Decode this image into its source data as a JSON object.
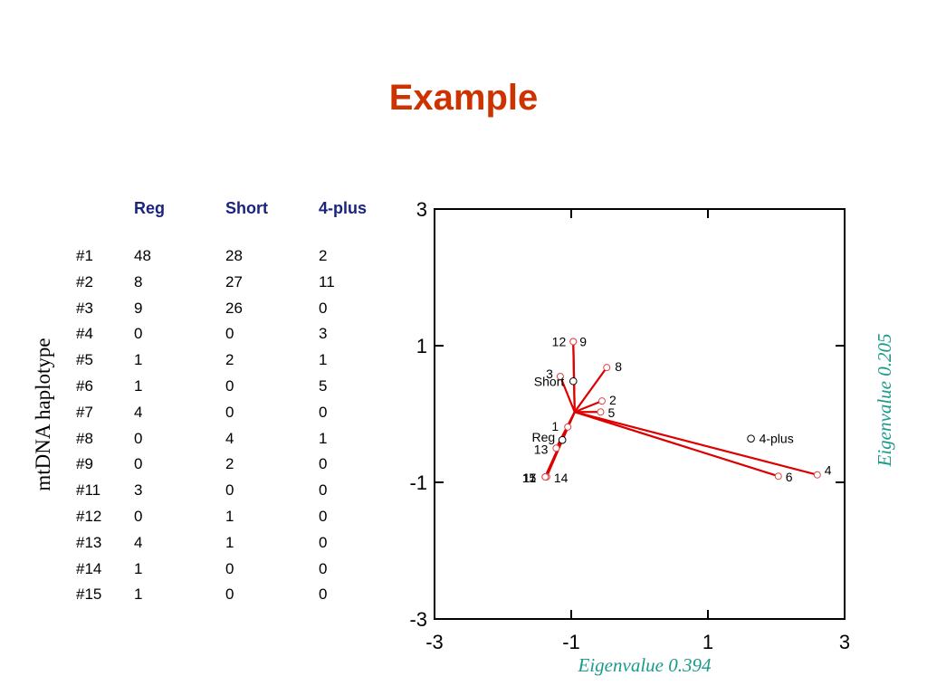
{
  "title": "Example",
  "table": {
    "columns": [
      "Reg",
      "Short",
      "4-plus"
    ],
    "row_axis_label": "mtDNA haplotype",
    "rows": [
      {
        "id": "#1",
        "values": [
          "48",
          "28",
          "2"
        ]
      },
      {
        "id": "#2",
        "values": [
          "8",
          "27",
          "11"
        ]
      },
      {
        "id": "#3",
        "values": [
          "9",
          "26",
          "0"
        ]
      },
      {
        "id": "#4",
        "values": [
          "0",
          "0",
          "3"
        ]
      },
      {
        "id": "#5",
        "values": [
          "1",
          "2",
          "1"
        ]
      },
      {
        "id": "#6",
        "values": [
          "1",
          "0",
          "5"
        ]
      },
      {
        "id": "#7",
        "values": [
          "4",
          "0",
          "0"
        ]
      },
      {
        "id": "#8",
        "values": [
          "0",
          "4",
          "1"
        ]
      },
      {
        "id": "#9",
        "values": [
          "0",
          "2",
          "0"
        ]
      },
      {
        "id": "#11",
        "values": [
          "3",
          "0",
          "0"
        ]
      },
      {
        "id": "#12",
        "values": [
          "0",
          "1",
          "0"
        ]
      },
      {
        "id": "#13",
        "values": [
          "4",
          "1",
          "0"
        ]
      },
      {
        "id": "#14",
        "values": [
          "1",
          "0",
          "0"
        ]
      },
      {
        "id": "#15",
        "values": [
          "1",
          "0",
          "0"
        ]
      }
    ]
  },
  "chart_data": {
    "type": "scatter",
    "title": "",
    "xlabel": "Eigenvalue 0.394",
    "ylabel": "Eigenvalue 0.205",
    "xlim": [
      -3,
      3
    ],
    "ylim": [
      -3,
      3
    ],
    "xticks": [
      -3,
      -1,
      1,
      3
    ],
    "yticks": [
      -3,
      -1,
      1,
      3
    ],
    "grid": false,
    "origin": [
      -0.95,
      0.03
    ],
    "line_color": "#dd0000",
    "marker_color": "#dd4444",
    "points": [
      {
        "label": "1",
        "x": -1.05,
        "y": -0.19
      },
      {
        "label": "2",
        "x": -0.55,
        "y": 0.19
      },
      {
        "label": "3",
        "x": -1.16,
        "y": 0.55
      },
      {
        "label": "4",
        "x": 2.6,
        "y": -0.89
      },
      {
        "label": "5",
        "x": -0.57,
        "y": 0.03
      },
      {
        "label": "6",
        "x": 2.03,
        "y": -0.91
      },
      {
        "label": "7",
        "x": -1.38,
        "y": -0.92
      },
      {
        "label": "8",
        "x": -0.48,
        "y": 0.68
      },
      {
        "label": "9",
        "x": -0.97,
        "y": 1.06
      },
      {
        "label": "11",
        "x": -1.38,
        "y": -0.92
      },
      {
        "label": "12",
        "x": -0.97,
        "y": 1.06
      },
      {
        "label": "13",
        "x": -1.22,
        "y": -0.5
      },
      {
        "label": "14",
        "x": -1.36,
        "y": -0.92
      },
      {
        "label": "15",
        "x": -1.38,
        "y": -0.92
      }
    ],
    "variables": [
      {
        "label": "Reg",
        "x": -1.13,
        "y": -0.38
      },
      {
        "label": "Short",
        "x": -0.97,
        "y": 0.48
      },
      {
        "label": "4-plus",
        "x": 1.63,
        "y": -0.36
      }
    ]
  }
}
